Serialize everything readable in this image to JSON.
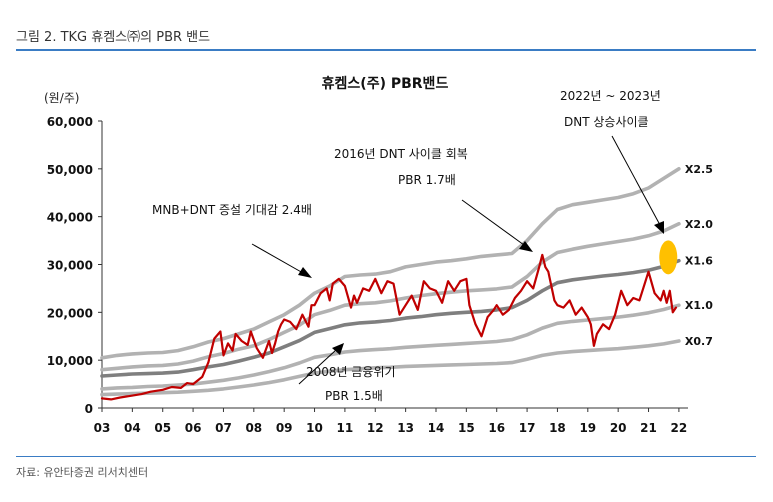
{
  "figure_title": "그림 2. TKG 휴켐스㈜의 PBR 밴드",
  "source_note": "자료: 유안타증권 리서치센터",
  "chart_data": {
    "type": "line",
    "title": "휴켐스(주) PBR밴드",
    "ylabel": "(원/주)",
    "xlabel": "",
    "ylim": [
      0,
      60000
    ],
    "yticks": [
      0,
      10000,
      20000,
      30000,
      40000,
      50000,
      60000
    ],
    "ytick_labels": [
      "0",
      "10,000",
      "20,000",
      "30,000",
      "40,000",
      "50,000",
      "60,000"
    ],
    "xlim": [
      2003.0,
      2022.3
    ],
    "xticks": [
      2003,
      2004,
      2005,
      2006,
      2007,
      2008,
      2009,
      2010,
      2011,
      2012,
      2013,
      2014,
      2015,
      2016,
      2017,
      2018,
      2019,
      2020,
      2021,
      2022
    ],
    "xtick_labels": [
      "03",
      "04",
      "05",
      "06",
      "07",
      "08",
      "09",
      "10",
      "11",
      "12",
      "13",
      "14",
      "15",
      "16",
      "17",
      "18",
      "19",
      "20",
      "21",
      "22"
    ],
    "grid": false,
    "band_color": "#b2b2b2",
    "book_color": "#7f7f7f",
    "price_color": "#c00000",
    "highlight_color": "#ffc000",
    "series": [
      {
        "name": "X2.5",
        "role": "band",
        "x": [
          2003.0,
          2003.5,
          2004.0,
          2004.5,
          2005.0,
          2005.5,
          2006.0,
          2006.5,
          2007.0,
          2007.5,
          2008.0,
          2008.5,
          2009.0,
          2009.5,
          2010.0,
          2010.5,
          2011.0,
          2011.5,
          2012.0,
          2012.5,
          2013.0,
          2013.5,
          2014.0,
          2014.5,
          2015.0,
          2015.5,
          2016.0,
          2016.5,
          2017.0,
          2017.5,
          2018.0,
          2018.5,
          2019.0,
          2019.5,
          2020.0,
          2020.5,
          2021.0,
          2021.5,
          2022.0
        ],
        "values": [
          10500,
          11000,
          11300,
          11500,
          11600,
          12000,
          12800,
          13800,
          14500,
          15500,
          16500,
          18000,
          19500,
          21500,
          24000,
          25500,
          27500,
          27800,
          28000,
          28500,
          29500,
          30000,
          30500,
          30800,
          31200,
          31700,
          32000,
          32300,
          35000,
          38500,
          41500,
          42500,
          43000,
          43500,
          44000,
          44800,
          46000,
          48000,
          50000
        ]
      },
      {
        "name": "X2.0",
        "role": "band",
        "x": [
          2003.0,
          2003.5,
          2004.0,
          2004.5,
          2005.0,
          2005.5,
          2006.0,
          2006.5,
          2007.0,
          2007.5,
          2008.0,
          2008.5,
          2009.0,
          2009.5,
          2010.0,
          2010.5,
          2011.0,
          2011.5,
          2012.0,
          2012.5,
          2013.0,
          2013.5,
          2014.0,
          2014.5,
          2015.0,
          2015.5,
          2016.0,
          2016.5,
          2017.0,
          2017.5,
          2018.0,
          2018.5,
          2019.0,
          2019.5,
          2020.0,
          2020.5,
          2021.0,
          2021.5,
          2022.0
        ],
        "values": [
          8000,
          8300,
          8600,
          8800,
          8900,
          9200,
          9800,
          10700,
          11400,
          12300,
          13000,
          14300,
          15800,
          17300,
          19500,
          20400,
          21500,
          21800,
          22000,
          22400,
          23000,
          23500,
          23900,
          24200,
          24500,
          24700,
          24900,
          25300,
          27500,
          30500,
          32500,
          33200,
          33800,
          34300,
          34800,
          35300,
          36000,
          37000,
          38500
        ]
      },
      {
        "name": "X1.6",
        "role": "book",
        "x": [
          2003.0,
          2003.5,
          2004.0,
          2004.5,
          2005.0,
          2005.5,
          2006.0,
          2006.5,
          2007.0,
          2007.5,
          2008.0,
          2008.5,
          2009.0,
          2009.5,
          2010.0,
          2010.5,
          2011.0,
          2011.5,
          2012.0,
          2012.5,
          2013.0,
          2013.5,
          2014.0,
          2014.5,
          2015.0,
          2015.5,
          2016.0,
          2016.5,
          2017.0,
          2017.5,
          2018.0,
          2018.5,
          2019.0,
          2019.5,
          2020.0,
          2020.5,
          2021.0,
          2021.5,
          2022.0
        ],
        "values": [
          6700,
          6900,
          7100,
          7200,
          7300,
          7500,
          8000,
          8600,
          9100,
          9800,
          10600,
          11500,
          12800,
          14100,
          15800,
          16600,
          17400,
          17800,
          18000,
          18300,
          18800,
          19100,
          19500,
          19800,
          20000,
          20200,
          20500,
          21000,
          22500,
          24500,
          26200,
          26800,
          27200,
          27600,
          27900,
          28300,
          28800,
          29600,
          30800
        ]
      },
      {
        "name": "X1.0",
        "role": "band",
        "x": [
          2003.0,
          2003.5,
          2004.0,
          2004.5,
          2005.0,
          2005.5,
          2006.0,
          2006.5,
          2007.0,
          2007.5,
          2008.0,
          2008.5,
          2009.0,
          2009.5,
          2010.0,
          2010.5,
          2011.0,
          2011.5,
          2012.0,
          2012.5,
          2013.0,
          2013.5,
          2014.0,
          2014.5,
          2015.0,
          2015.5,
          2016.0,
          2016.5,
          2017.0,
          2017.5,
          2018.0,
          2018.5,
          2019.0,
          2019.5,
          2020.0,
          2020.5,
          2021.0,
          2021.5,
          2022.0
        ],
        "values": [
          4000,
          4200,
          4300,
          4500,
          4600,
          4800,
          5000,
          5400,
          5800,
          6300,
          6900,
          7600,
          8400,
          9400,
          10600,
          11100,
          11700,
          12000,
          12200,
          12400,
          12700,
          12900,
          13100,
          13300,
          13500,
          13700,
          13900,
          14300,
          15300,
          16700,
          17700,
          18100,
          18400,
          18700,
          19000,
          19400,
          19900,
          20600,
          21500
        ]
      },
      {
        "name": "X0.7",
        "role": "band",
        "x": [
          2003.0,
          2003.5,
          2004.0,
          2004.5,
          2005.0,
          2005.5,
          2006.0,
          2006.5,
          2007.0,
          2007.5,
          2008.0,
          2008.5,
          2009.0,
          2009.5,
          2010.0,
          2010.5,
          2011.0,
          2011.5,
          2012.0,
          2012.5,
          2013.0,
          2013.5,
          2014.0,
          2014.5,
          2015.0,
          2015.5,
          2016.0,
          2016.5,
          2017.0,
          2017.5,
          2018.0,
          2018.5,
          2019.0,
          2019.5,
          2020.0,
          2020.5,
          2021.0,
          2021.5,
          2022.0
        ],
        "values": [
          2800,
          2900,
          3000,
          3100,
          3200,
          3300,
          3500,
          3700,
          4000,
          4400,
          4800,
          5300,
          5900,
          6600,
          7300,
          7700,
          8000,
          8200,
          8400,
          8500,
          8700,
          8800,
          8900,
          9000,
          9100,
          9200,
          9300,
          9500,
          10200,
          11000,
          11500,
          11800,
          12000,
          12200,
          12400,
          12700,
          13000,
          13400,
          14000
        ]
      },
      {
        "name": "",
        "role": "price",
        "x": [
          2003.0,
          2003.3,
          2003.6,
          2004.0,
          2004.3,
          2004.6,
          2005.0,
          2005.3,
          2005.6,
          2005.8,
          2006.0,
          2006.3,
          2006.5,
          2006.7,
          2006.9,
          2007.0,
          2007.15,
          2007.3,
          2007.4,
          2007.6,
          2007.8,
          2007.9,
          2008.1,
          2008.3,
          2008.5,
          2008.6,
          2008.7,
          2008.8,
          2008.9,
          2009.0,
          2009.2,
          2009.4,
          2009.6,
          2009.8,
          2009.9,
          2010.0,
          2010.2,
          2010.4,
          2010.5,
          2010.6,
          2010.8,
          2011.0,
          2011.2,
          2011.3,
          2011.4,
          2011.6,
          2011.8,
          2012.0,
          2012.2,
          2012.4,
          2012.6,
          2012.8,
          2013.0,
          2013.2,
          2013.4,
          2013.6,
          2013.8,
          2014.0,
          2014.2,
          2014.4,
          2014.6,
          2014.8,
          2015.0,
          2015.1,
          2015.2,
          2015.3,
          2015.5,
          2015.7,
          2015.9,
          2016.0,
          2016.2,
          2016.4,
          2016.6,
          2016.8,
          2017.0,
          2017.2,
          2017.4,
          2017.5,
          2017.6,
          2017.7,
          2017.9,
          2018.0,
          2018.2,
          2018.4,
          2018.6,
          2018.8,
          2019.0,
          2019.1,
          2019.2,
          2019.3,
          2019.5,
          2019.7,
          2019.9,
          2020.1,
          2020.3,
          2020.5,
          2020.7,
          2020.9,
          2021.0,
          2021.2,
          2021.4,
          2021.5,
          2021.6,
          2021.7,
          2021.8,
          2021.9
        ],
        "values": [
          2000,
          1800,
          2200,
          2600,
          2900,
          3400,
          3800,
          4400,
          4200,
          5200,
          5000,
          6500,
          9500,
          14500,
          16000,
          11000,
          13500,
          12000,
          15500,
          14000,
          13200,
          16000,
          12500,
          10500,
          14000,
          11500,
          13500,
          16000,
          17500,
          18500,
          18000,
          16500,
          19500,
          17000,
          21500,
          21500,
          24000,
          25000,
          22500,
          26000,
          27000,
          25500,
          21000,
          23500,
          22000,
          25000,
          24500,
          27000,
          24000,
          26500,
          26000,
          19500,
          21500,
          23500,
          20500,
          26500,
          25000,
          24500,
          22000,
          26500,
          24500,
          26500,
          27000,
          21500,
          19500,
          17500,
          15000,
          19000,
          20500,
          21500,
          19500,
          20500,
          23000,
          24500,
          26500,
          25000,
          29500,
          32000,
          29500,
          28500,
          22500,
          21500,
          21000,
          22500,
          19500,
          21000,
          19000,
          17500,
          13000,
          15500,
          17500,
          16500,
          19500,
          24500,
          21500,
          23000,
          22500,
          26500,
          28500,
          24000,
          22500,
          24500,
          22000,
          24500,
          20000,
          21000
        ]
      }
    ],
    "annotations": [
      {
        "text": "MNB+DNT 증설 기대감 2.4배"
      },
      {
        "text": "2016년 DNT 사이클 회복"
      },
      {
        "text": "PBR 1.7배"
      },
      {
        "text": "2022년 ~ 2023년"
      },
      {
        "text": "DNT 상승사이클"
      },
      {
        "text": "2008년 금융위기"
      },
      {
        "text": "PBR 1.5배"
      }
    ],
    "highlight": {
      "x": 2021.65,
      "y": 31500
    }
  }
}
